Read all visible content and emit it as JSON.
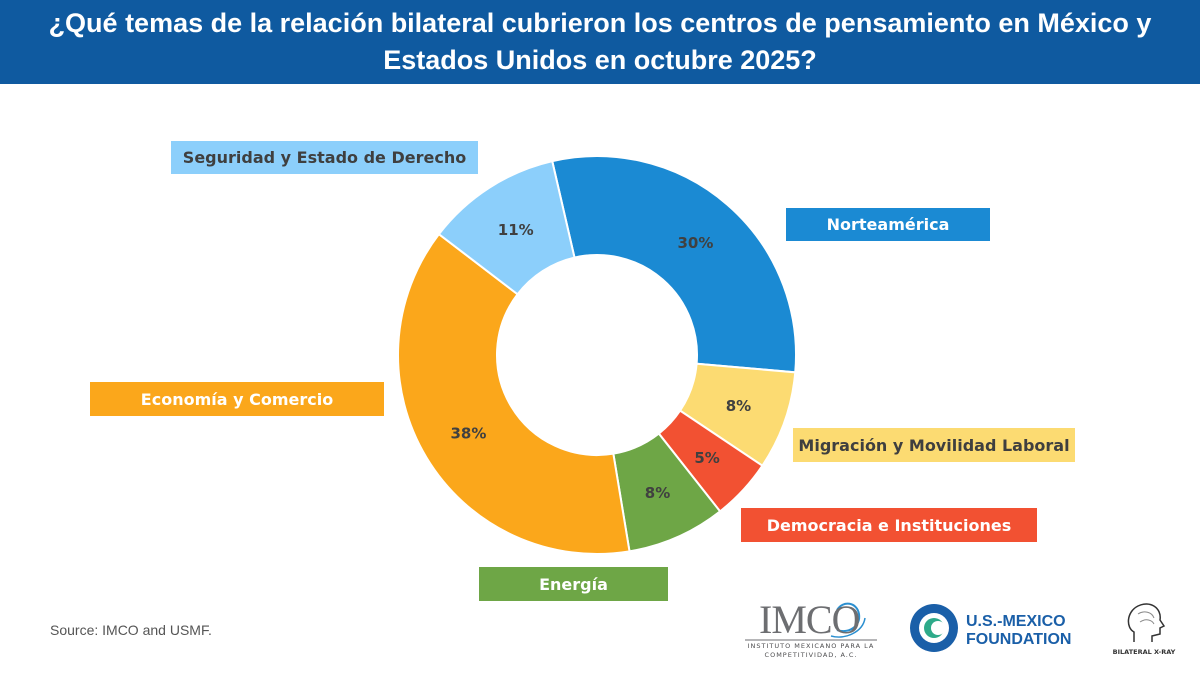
{
  "header": {
    "title": "¿Qué temas de la relación bilateral cubrieron los centros de pensamiento en México y Estados Unidos en octubre 2025?"
  },
  "chart_data": {
    "type": "pie",
    "title": "¿Qué temas de la relación bilateral cubrieron los centros de pensamiento en México y Estados Unidos en octubre 2025?",
    "categories": [
      "Norteamérica",
      "Migración y Movilidad Laboral",
      "Democracia e Instituciones",
      "Energía",
      "Economía y Comercio",
      "Seguridad y Estado de Derecho"
    ],
    "values": [
      30,
      8,
      5,
      8,
      38,
      11
    ],
    "value_labels": [
      "30%",
      "8%",
      "5%",
      "8%",
      "38%",
      "11%"
    ],
    "colors": [
      "#1b8ad3",
      "#fcdb72",
      "#f25132",
      "#6ea646",
      "#fba71b",
      "#8ccffb"
    ],
    "legend_text_colors": [
      "#ffffff",
      "#3f3f3f",
      "#ffffff",
      "#ffffff",
      "#ffffff",
      "#3f3f3f"
    ],
    "hole": "donut",
    "legend": "labels beside slices"
  },
  "source": "Source: IMCO and USMF.",
  "logos": {
    "imco": {
      "name": "IMCO",
      "subtitle": "INSTITUTO MEXICANO PARA LA COMPETITIVIDAD, A.C."
    },
    "usmf": {
      "line1": "U.S.-MEXICO",
      "line2": "FOUNDATION"
    },
    "bilateral_xray": {
      "name": "BILATERAL X-RAY"
    }
  }
}
